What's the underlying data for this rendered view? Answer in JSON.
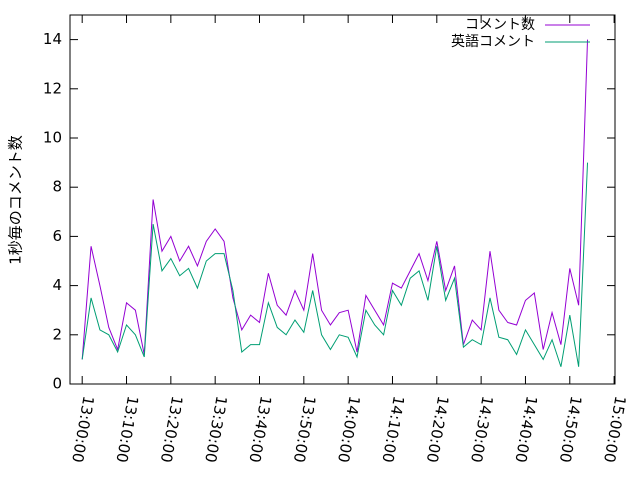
{
  "chart_data": {
    "type": "line",
    "ylabel": "1秒毎のコメント数",
    "x": [
      "13:00:00",
      "13:02:00",
      "13:04:00",
      "13:06:00",
      "13:08:00",
      "13:10:00",
      "13:12:00",
      "13:14:00",
      "13:16:00",
      "13:18:00",
      "13:20:00",
      "13:22:00",
      "13:24:00",
      "13:26:00",
      "13:28:00",
      "13:30:00",
      "13:32:00",
      "13:34:00",
      "13:36:00",
      "13:38:00",
      "13:40:00",
      "13:42:00",
      "13:44:00",
      "13:46:00",
      "13:48:00",
      "13:50:00",
      "13:52:00",
      "13:54:00",
      "13:56:00",
      "13:58:00",
      "14:00:00",
      "14:02:00",
      "14:04:00",
      "14:06:00",
      "14:08:00",
      "14:10:00",
      "14:12:00",
      "14:14:00",
      "14:16:00",
      "14:18:00",
      "14:20:00",
      "14:22:00",
      "14:24:00",
      "14:26:00",
      "14:28:00",
      "14:30:00",
      "14:32:00",
      "14:34:00",
      "14:36:00",
      "14:38:00",
      "14:40:00",
      "14:42:00",
      "14:44:00",
      "14:46:00",
      "14:48:00",
      "14:50:00",
      "14:52:00",
      "14:54:00"
    ],
    "series": [
      {
        "name": "コメント数",
        "color": "#9400d3",
        "values": [
          1.0,
          5.6,
          4.0,
          2.3,
          1.4,
          3.3,
          3.0,
          1.2,
          7.5,
          5.4,
          6.0,
          5.0,
          5.6,
          4.8,
          5.8,
          6.3,
          5.8,
          3.5,
          2.2,
          2.8,
          2.5,
          4.5,
          3.2,
          2.8,
          3.8,
          3.0,
          5.3,
          3.0,
          2.4,
          2.9,
          3.0,
          1.3,
          3.6,
          3.0,
          2.4,
          4.1,
          3.9,
          4.6,
          5.3,
          4.2,
          5.8,
          3.8,
          4.8,
          1.6,
          2.6,
          2.2,
          5.4,
          3.0,
          2.5,
          2.4,
          3.4,
          3.7,
          1.4,
          2.9,
          1.6,
          4.7,
          3.2,
          14.0
        ]
      },
      {
        "name": "英語コメント",
        "color": "#009e73",
        "values": [
          1.0,
          3.5,
          2.2,
          2.0,
          1.3,
          2.4,
          2.0,
          1.1,
          6.5,
          4.6,
          5.1,
          4.4,
          4.7,
          3.9,
          5.0,
          5.3,
          5.3,
          3.8,
          1.3,
          1.6,
          1.6,
          3.3,
          2.3,
          2.0,
          2.6,
          2.1,
          3.8,
          2.0,
          1.4,
          2.0,
          1.9,
          1.1,
          3.0,
          2.4,
          2.0,
          3.8,
          3.2,
          4.3,
          4.6,
          3.4,
          5.6,
          3.4,
          4.3,
          1.5,
          1.8,
          1.6,
          3.5,
          1.9,
          1.8,
          1.2,
          2.2,
          1.6,
          1.0,
          1.8,
          0.7,
          2.8,
          0.7,
          9.0
        ]
      }
    ],
    "xlim": [
      "12:57:15",
      "15:00:12"
    ],
    "xticks": [
      "13:00:00",
      "13:10:00",
      "13:20:00",
      "13:30:00",
      "13:40:00",
      "13:50:00",
      "14:00:00",
      "14:10:00",
      "14:20:00",
      "14:30:00",
      "14:40:00",
      "14:50:00",
      "15:00:00"
    ],
    "ylim": [
      0,
      15
    ],
    "yticks": [
      0,
      2,
      4,
      6,
      8,
      10,
      12,
      14
    ],
    "legend": "top-right"
  }
}
